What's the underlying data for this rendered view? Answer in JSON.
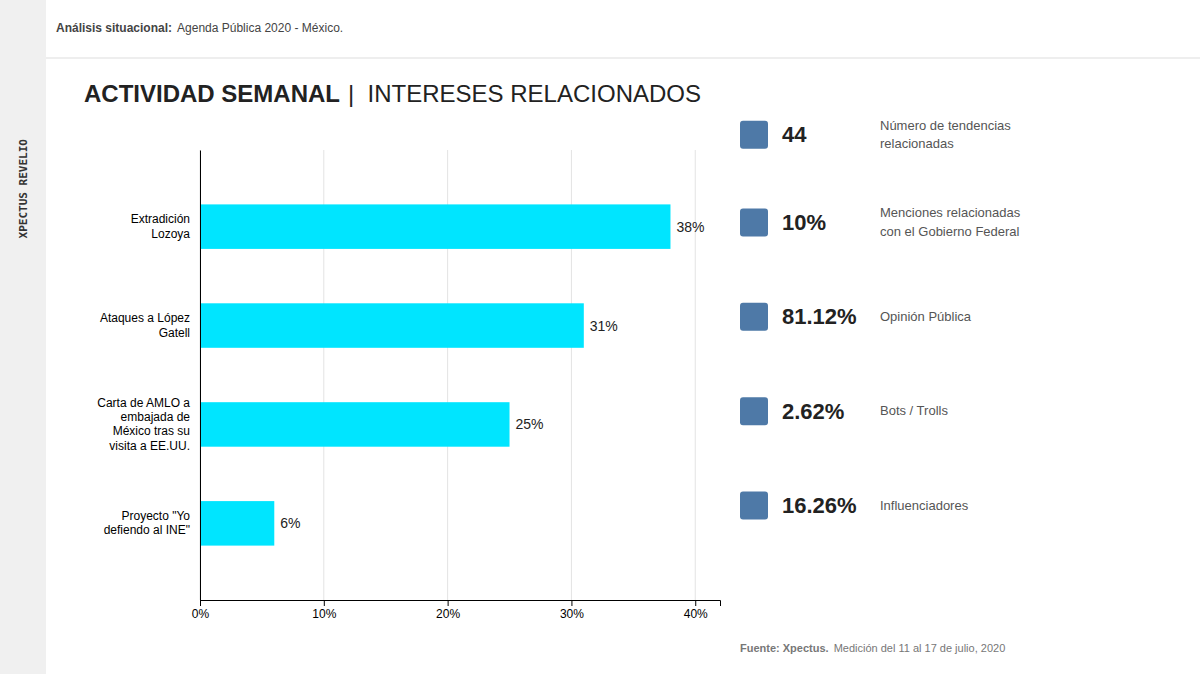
{
  "chart_data": {
    "type": "bar",
    "orientation": "horizontal",
    "title": "ACTIVIDAD SEMANAL",
    "subtitle": "|  INTERESES RELACIONADOS",
    "header": [
      "Análisis situacional:",
      "Agenda Pública 2020 - México."
    ],
    "sidebar": "XPECTUS REVELIO",
    "footer": [
      "Fuente: Xpectus.",
      "Medición del 11 al 17 de julio, 2020"
    ],
    "categories": [
      "Extradición\nLozoya",
      "Ataques a López\nGatell",
      "Carta de AMLO a\nembajada de\nMéxico tras su\nvisita a EE.UU.",
      "Proyecto \"Yo\ndefiendo al INE\""
    ],
    "values": [
      38,
      31,
      25,
      6
    ],
    "value_labels": [
      "38%",
      "31%",
      "25%",
      "6%"
    ],
    "data_labels": true,
    "color": "#00e5ff",
    "xlim": [
      0,
      42
    ],
    "xticks": [
      {
        "value": 0,
        "label": "0%"
      },
      {
        "value": 10,
        "label": "10%"
      },
      {
        "value": 20,
        "label": "20%"
      },
      {
        "value": 30,
        "label": "30%"
      },
      {
        "value": 40,
        "label": "40%"
      }
    ],
    "grid": true,
    "annotations": [
      {
        "heading": "44",
        "text": "Número de tendencias\nrelacionadas"
      },
      {
        "heading": "10%",
        "text": "Menciones relacionadas\ncon el Gobierno Federal"
      },
      {
        "heading": "81.12%",
        "text": "Opinión Pública"
      },
      {
        "heading": "2.62%",
        "text": "Bots / Trolls"
      },
      {
        "heading": "16.26%",
        "text": "Influenciadores"
      }
    ]
  }
}
